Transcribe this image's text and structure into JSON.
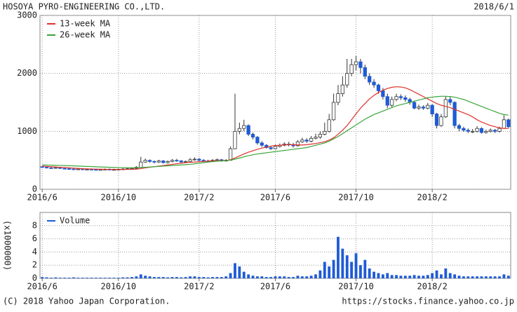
{
  "chart_data": [
    {
      "type": "candlestick",
      "title": "HOSOYA PYRO-ENGINEERING CO.,LTD.",
      "date": "2018/6/1",
      "x": [
        0,
        1,
        2,
        3,
        4,
        5,
        6,
        7,
        8,
        9,
        10,
        11,
        12,
        13,
        14,
        15,
        16,
        17,
        18,
        19,
        20,
        21,
        22,
        23,
        24,
        25,
        26,
        27,
        28,
        29,
        30,
        31,
        32,
        33,
        34,
        35,
        36,
        37,
        38,
        39,
        40,
        41,
        42,
        43,
        44,
        45,
        46,
        47,
        48,
        49,
        50,
        51,
        52,
        53,
        54,
        55,
        56,
        57,
        58,
        59,
        60,
        61,
        62,
        63,
        64,
        65,
        66,
        67,
        68,
        69,
        70,
        71,
        72,
        73,
        74,
        75,
        76,
        77,
        78,
        79,
        80,
        81,
        82,
        83,
        84,
        85,
        86,
        87,
        88,
        89,
        90,
        91,
        92,
        93,
        94,
        95,
        96,
        97,
        98,
        99,
        100,
        101,
        102,
        103,
        104
      ],
      "open": [
        390,
        380,
        370,
        365,
        375,
        360,
        355,
        350,
        345,
        350,
        340,
        345,
        340,
        335,
        340,
        345,
        335,
        340,
        345,
        350,
        355,
        360,
        380,
        470,
        500,
        480,
        470,
        490,
        460,
        480,
        500,
        490,
        470,
        480,
        510,
        520,
        500,
        490,
        480,
        500,
        510,
        490,
        500,
        700,
        1000,
        1050,
        1100,
        950,
        900,
        800,
        760,
        720,
        700,
        740,
        760,
        780,
        770,
        750,
        820,
        850,
        830,
        880,
        900,
        950,
        1000,
        1200,
        1500,
        1650,
        1800,
        2000,
        2150,
        2200,
        2100,
        1950,
        1850,
        1800,
        1700,
        1600,
        1450,
        1550,
        1600,
        1580,
        1550,
        1500,
        1400,
        1420,
        1400,
        1450,
        1300,
        1100,
        1250,
        1550,
        1500,
        1100,
        1050,
        1020,
        1000,
        1000,
        1050,
        980,
        1000,
        1020,
        1000,
        1050,
        1200
      ],
      "high": [
        400,
        395,
        385,
        390,
        385,
        375,
        370,
        365,
        365,
        360,
        360,
        360,
        355,
        355,
        360,
        360,
        355,
        360,
        365,
        370,
        380,
        400,
        560,
        530,
        515,
        500,
        510,
        505,
        500,
        520,
        525,
        505,
        500,
        540,
        550,
        540,
        520,
        510,
        520,
        530,
        525,
        520,
        740,
        1650,
        1150,
        1200,
        1120,
        980,
        920,
        830,
        780,
        750,
        770,
        790,
        810,
        820,
        800,
        850,
        890,
        880,
        920,
        960,
        1000,
        1150,
        1300,
        1650,
        1800,
        1950,
        2250,
        2250,
        2300,
        2250,
        2150,
        2000,
        1900,
        1820,
        1750,
        1650,
        1600,
        1650,
        1640,
        1620,
        1580,
        1530,
        1460,
        1450,
        1490,
        1470,
        1320,
        1300,
        1600,
        1600,
        1520,
        1130,
        1080,
        1050,
        1040,
        1090,
        1070,
        1030,
        1050,
        1040,
        1080,
        1280,
        1220
      ],
      "low": [
        370,
        360,
        355,
        355,
        350,
        345,
        340,
        335,
        335,
        330,
        330,
        330,
        325,
        325,
        330,
        325,
        325,
        330,
        335,
        340,
        345,
        350,
        375,
        455,
        460,
        450,
        455,
        445,
        445,
        465,
        475,
        455,
        455,
        470,
        495,
        485,
        475,
        465,
        470,
        485,
        475,
        480,
        495,
        690,
        950,
        1000,
        920,
        860,
        770,
        730,
        700,
        680,
        690,
        720,
        740,
        740,
        720,
        740,
        800,
        800,
        810,
        860,
        870,
        930,
        980,
        1180,
        1450,
        1600,
        1750,
        1950,
        2050,
        2000,
        1900,
        1800,
        1750,
        1650,
        1550,
        1400,
        1420,
        1520,
        1540,
        1510,
        1460,
        1380,
        1370,
        1370,
        1380,
        1250,
        1050,
        1080,
        1230,
        1450,
        1050,
        1000,
        990,
        970,
        970,
        980,
        960,
        960,
        980,
        970,
        980,
        1040,
        1050
      ],
      "close": [
        380,
        370,
        365,
        375,
        360,
        355,
        350,
        345,
        350,
        340,
        345,
        340,
        335,
        340,
        345,
        335,
        340,
        345,
        350,
        355,
        360,
        380,
        470,
        500,
        480,
        470,
        490,
        460,
        480,
        500,
        490,
        470,
        480,
        510,
        520,
        500,
        490,
        480,
        500,
        510,
        490,
        500,
        700,
        1000,
        1050,
        1100,
        950,
        900,
        800,
        760,
        720,
        700,
        740,
        760,
        780,
        770,
        750,
        820,
        850,
        830,
        880,
        900,
        950,
        1000,
        1200,
        1500,
        1650,
        1800,
        2000,
        2150,
        2200,
        2100,
        1950,
        1850,
        1800,
        1700,
        1600,
        1450,
        1550,
        1600,
        1580,
        1550,
        1500,
        1400,
        1420,
        1400,
        1450,
        1300,
        1100,
        1250,
        1550,
        1500,
        1100,
        1050,
        1020,
        1000,
        1000,
        1050,
        980,
        1000,
        1020,
        1000,
        1050,
        1200,
        1080
      ],
      "up_color": "#ffffff",
      "down_color": "#1f5bd6",
      "series": [
        {
          "name": "13-week MA",
          "color": "#e0302a",
          "values": [
            400,
            395,
            390,
            385,
            380,
            375,
            370,
            365,
            360,
            355,
            352,
            350,
            348,
            346,
            345,
            344,
            344,
            343,
            343,
            344,
            345,
            348,
            358,
            370,
            380,
            390,
            400,
            410,
            420,
            430,
            440,
            450,
            460,
            465,
            470,
            475,
            480,
            485,
            490,
            492,
            494,
            495,
            510,
            540,
            575,
            610,
            640,
            665,
            690,
            710,
            730,
            745,
            755,
            760,
            765,
            770,
            770,
            765,
            765,
            770,
            780,
            790,
            805,
            820,
            850,
            890,
            950,
            1020,
            1100,
            1200,
            1300,
            1400,
            1480,
            1560,
            1620,
            1670,
            1710,
            1740,
            1760,
            1770,
            1765,
            1750,
            1720,
            1680,
            1640,
            1600,
            1560,
            1520,
            1480,
            1450,
            1430,
            1410,
            1380,
            1350,
            1320,
            1290,
            1250,
            1200,
            1160,
            1130,
            1100,
            1080,
            1060,
            1050,
            1050
          ]
        },
        {
          "name": "26-week MA",
          "color": "#3aa53a",
          "values": [
            420,
            418,
            416,
            414,
            412,
            410,
            407,
            404,
            401,
            398,
            395,
            392,
            389,
            386,
            383,
            380,
            378,
            376,
            374,
            372,
            371,
            372,
            376,
            380,
            385,
            390,
            395,
            400,
            405,
            410,
            415,
            420,
            425,
            430,
            440,
            450,
            460,
            470,
            478,
            485,
            490,
            495,
            505,
            520,
            540,
            560,
            580,
            595,
            610,
            620,
            630,
            640,
            650,
            660,
            670,
            680,
            690,
            700,
            710,
            720,
            740,
            760,
            780,
            800,
            830,
            870,
            910,
            960,
            1010,
            1060,
            1110,
            1160,
            1210,
            1250,
            1290,
            1320,
            1350,
            1380,
            1410,
            1440,
            1460,
            1480,
            1500,
            1520,
            1540,
            1560,
            1580,
            1590,
            1600,
            1605,
            1605,
            1600,
            1590,
            1570,
            1550,
            1520,
            1490,
            1460,
            1430,
            1400,
            1370,
            1340,
            1310,
            1290,
            1280
          ]
        }
      ],
      "xlim": [
        -0.5,
        104.5
      ],
      "xticks": [
        {
          "value": 0,
          "label": "2016/6"
        },
        {
          "value": 17,
          "label": "2016/10"
        },
        {
          "value": 35,
          "label": "2017/2"
        },
        {
          "value": 52,
          "label": "2017/6"
        },
        {
          "value": 70,
          "label": "2017/10"
        },
        {
          "value": 87,
          "label": "2018/2"
        }
      ],
      "ylim": [
        0,
        3000
      ],
      "yticks": [
        0,
        1000,
        2000,
        3000
      ],
      "grid": true,
      "legend": "upper left"
    },
    {
      "type": "bar",
      "ylabel": "(x1000000)",
      "x": [
        0,
        1,
        2,
        3,
        4,
        5,
        6,
        7,
        8,
        9,
        10,
        11,
        12,
        13,
        14,
        15,
        16,
        17,
        18,
        19,
        20,
        21,
        22,
        23,
        24,
        25,
        26,
        27,
        28,
        29,
        30,
        31,
        32,
        33,
        34,
        35,
        36,
        37,
        38,
        39,
        40,
        41,
        42,
        43,
        44,
        45,
        46,
        47,
        48,
        49,
        50,
        51,
        52,
        53,
        54,
        55,
        56,
        57,
        58,
        59,
        60,
        61,
        62,
        63,
        64,
        65,
        66,
        67,
        68,
        69,
        70,
        71,
        72,
        73,
        74,
        75,
        76,
        77,
        78,
        79,
        80,
        81,
        82,
        83,
        84,
        85,
        86,
        87,
        88,
        89,
        90,
        91,
        92,
        93,
        94,
        95,
        96,
        97,
        98,
        99,
        100,
        101,
        102,
        103,
        104
      ],
      "series": [
        {
          "name": "Volume",
          "color": "#1f5bd6",
          "values": [
            0.2,
            0.15,
            0.1,
            0.15,
            0.1,
            0.1,
            0.1,
            0.15,
            0.1,
            0.1,
            0.1,
            0.1,
            0.1,
            0.1,
            0.1,
            0.1,
            0.1,
            0.1,
            0.15,
            0.15,
            0.2,
            0.3,
            0.6,
            0.4,
            0.3,
            0.2,
            0.2,
            0.2,
            0.15,
            0.2,
            0.2,
            0.15,
            0.2,
            0.3,
            0.3,
            0.2,
            0.2,
            0.15,
            0.2,
            0.2,
            0.2,
            0.3,
            0.8,
            2.3,
            1.8,
            1.0,
            0.6,
            0.4,
            0.3,
            0.3,
            0.2,
            0.2,
            0.3,
            0.3,
            0.3,
            0.2,
            0.2,
            0.4,
            0.3,
            0.3,
            0.4,
            0.6,
            1.2,
            2.5,
            1.8,
            2.8,
            6.3,
            4.5,
            3.5,
            2.5,
            3.8,
            2.0,
            2.8,
            1.5,
            1.0,
            0.8,
            0.6,
            0.8,
            0.5,
            0.5,
            0.4,
            0.4,
            0.4,
            0.5,
            0.4,
            0.4,
            0.5,
            0.8,
            1.2,
            0.6,
            1.5,
            0.8,
            0.6,
            0.4,
            0.3,
            0.3,
            0.3,
            0.3,
            0.3,
            0.3,
            0.3,
            0.3,
            0.3,
            0.6,
            0.4
          ]
        }
      ],
      "xlim": [
        -0.5,
        104.5
      ],
      "xticks": [
        {
          "value": 0,
          "label": "2016/6"
        },
        {
          "value": 17,
          "label": "2016/10"
        },
        {
          "value": 35,
          "label": "2017/2"
        },
        {
          "value": 52,
          "label": "2017/6"
        },
        {
          "value": 70,
          "label": "2017/10"
        },
        {
          "value": 87,
          "label": "2018/2"
        }
      ],
      "ylim": [
        0,
        10
      ],
      "yticks": [
        0,
        2,
        4,
        6,
        8
      ],
      "grid": true,
      "legend": "upper left"
    }
  ],
  "footer": {
    "copyright": "(C) 2018 Yahoo Japan Corporation.",
    "url": "https://stocks.finance.yahoo.co.jp"
  }
}
